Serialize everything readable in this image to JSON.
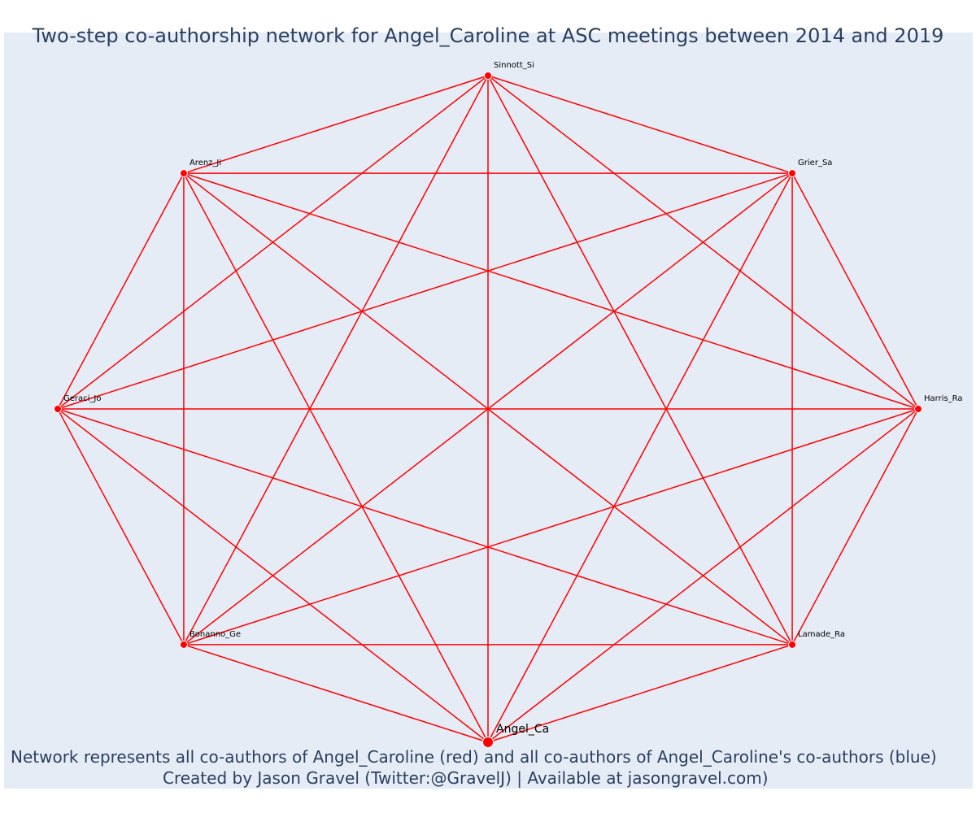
{
  "title": "Two-step co-authorship network for Angel_Caroline at ASC meetings between 2014 and 2019",
  "caption": {
    "line1": "Network represents all co-authors of Angel_Caroline (red) and all co-authors of Angel_Caroline's co-authors (blue)",
    "line2": "Created by Jason Gravel (Twitter:@GravelJ) | Available at jasongravel.com)"
  },
  "colors": {
    "edge": "#ff0000",
    "node": "#ff0000",
    "node_border": "#ffffff",
    "background": "#e5ecf6",
    "text": "#2a3f5f"
  },
  "network": {
    "layout": "circular",
    "focal_node": "angel",
    "nodes": [
      {
        "id": "sinnott",
        "label": "Sinnott_Si",
        "group": "co-author"
      },
      {
        "id": "grier",
        "label": "Grier_Sa",
        "group": "co-author"
      },
      {
        "id": "harris",
        "label": "Harris_Ra",
        "group": "co-author"
      },
      {
        "id": "lamade",
        "label": "Lamade_Ra",
        "group": "co-author"
      },
      {
        "id": "angel",
        "label": "Angel_Ca",
        "group": "focal"
      },
      {
        "id": "bonanno",
        "label": "Bonanno_Ge",
        "group": "co-author"
      },
      {
        "id": "geraci",
        "label": "Geraci_Jo",
        "group": "co-author"
      },
      {
        "id": "arenz",
        "label": "Arenz_Ji",
        "group": "co-author"
      }
    ],
    "edges": [
      [
        "sinnott",
        "grier"
      ],
      [
        "sinnott",
        "harris"
      ],
      [
        "sinnott",
        "lamade"
      ],
      [
        "sinnott",
        "angel"
      ],
      [
        "sinnott",
        "bonanno"
      ],
      [
        "sinnott",
        "geraci"
      ],
      [
        "sinnott",
        "arenz"
      ],
      [
        "grier",
        "harris"
      ],
      [
        "grier",
        "lamade"
      ],
      [
        "grier",
        "angel"
      ],
      [
        "grier",
        "bonanno"
      ],
      [
        "grier",
        "geraci"
      ],
      [
        "grier",
        "arenz"
      ],
      [
        "harris",
        "lamade"
      ],
      [
        "harris",
        "angel"
      ],
      [
        "harris",
        "bonanno"
      ],
      [
        "harris",
        "geraci"
      ],
      [
        "harris",
        "arenz"
      ],
      [
        "lamade",
        "angel"
      ],
      [
        "lamade",
        "bonanno"
      ],
      [
        "lamade",
        "geraci"
      ],
      [
        "lamade",
        "arenz"
      ],
      [
        "angel",
        "bonanno"
      ],
      [
        "angel",
        "geraci"
      ],
      [
        "angel",
        "arenz"
      ],
      [
        "bonanno",
        "geraci"
      ],
      [
        "bonanno",
        "arenz"
      ],
      [
        "geraci",
        "arenz"
      ]
    ]
  }
}
